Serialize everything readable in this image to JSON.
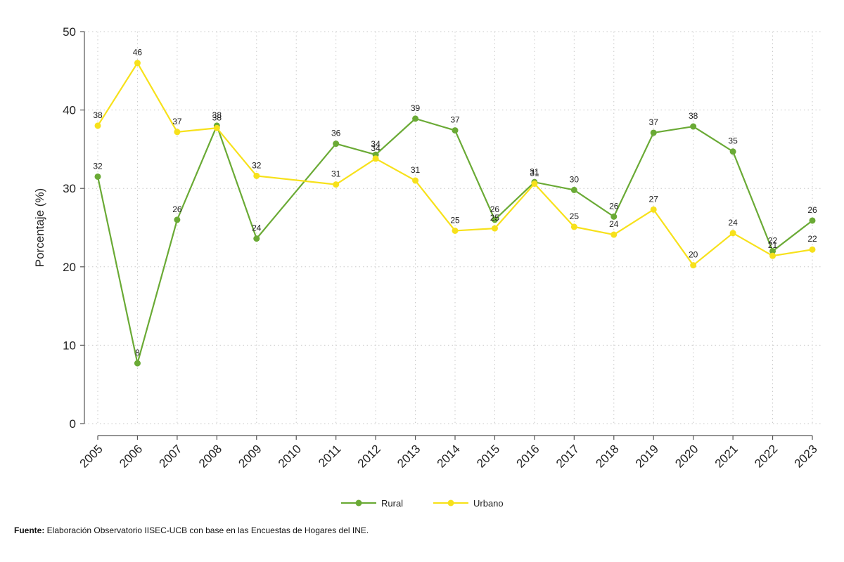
{
  "chart_data": {
    "type": "line",
    "ylabel": "Porcentaje (%)",
    "xlabel": "",
    "ylim": [
      0,
      50
    ],
    "yticks": [
      0,
      10,
      20,
      30,
      40,
      50
    ],
    "x": [
      "2005",
      "2006",
      "2007",
      "2008",
      "2009",
      "2010",
      "2011",
      "2012",
      "2013",
      "2014",
      "2015",
      "2016",
      "2017",
      "2018",
      "2019",
      "2020",
      "2021",
      "2022",
      "2023"
    ],
    "grid": true,
    "legend_position": "bottom",
    "series": [
      {
        "name": "Rural",
        "color": "#6aaa35",
        "values": [
          31.5,
          7.7,
          26.0,
          38.0,
          23.6,
          null,
          35.7,
          34.3,
          38.9,
          37.4,
          26.0,
          30.8,
          29.8,
          26.4,
          37.1,
          37.9,
          34.7,
          22.0,
          25.9
        ],
        "labels": [
          "32",
          "8",
          "26",
          "38",
          "24",
          null,
          "36",
          "34",
          "39",
          "37",
          "26",
          "31",
          "30",
          "26",
          "37",
          "38",
          "35",
          "22",
          "26"
        ]
      },
      {
        "name": "Urbano",
        "color": "#f7e11b",
        "values": [
          38.0,
          46.0,
          37.2,
          37.7,
          31.6,
          null,
          30.5,
          33.8,
          31.0,
          24.6,
          24.9,
          30.6,
          25.1,
          24.1,
          27.3,
          20.2,
          24.3,
          21.4,
          22.2
        ],
        "labels": [
          "38",
          "46",
          "37",
          "38",
          "32",
          null,
          "31",
          "34",
          "31",
          "25",
          "25",
          "31",
          "25",
          "24",
          "27",
          "20",
          "24",
          "21",
          "22"
        ]
      }
    ]
  },
  "source": {
    "label": "Fuente:",
    "text": " Elaboración Observatorio IISEC-UCB con base en las Encuestas de Hogares del INE."
  }
}
